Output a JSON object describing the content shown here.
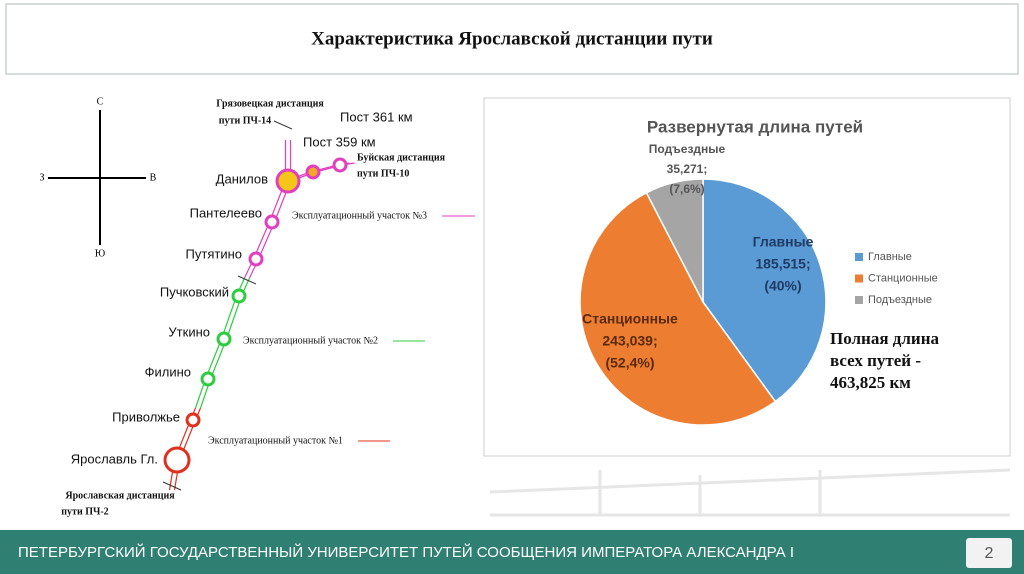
{
  "header": {
    "title": "Характеристика Ярославской дистанции пути"
  },
  "map": {
    "compass": {
      "north": "С",
      "south": "Ю",
      "west": "З",
      "east": "В"
    },
    "stations": [
      "Ярославль Гл.",
      "Приволжье",
      "Филино",
      "Уткино",
      "Пучковский",
      "Путятино",
      "Пантелеево",
      "Данилов",
      "Пост 359 км",
      "Пост 361 км"
    ],
    "sections": [
      "Эксплуатационный участок №1",
      "Эксплуатационный участок №2",
      "Эксплуатационный участок №3"
    ],
    "divisions": [
      {
        "lines": [
          "Ярославская дистанция",
          "пути  ПЧ-2"
        ]
      },
      {
        "lines": [
          "Грязовецкая дистанция",
          "пути  ПЧ-14"
        ]
      },
      {
        "lines": [
          "Буйская дистанция",
          "пути  ПЧ-10"
        ]
      }
    ]
  },
  "chart_data": {
    "type": "pie",
    "title": "Развернутая длина путей",
    "categories": [
      "Главные",
      "Станционные",
      "Подъездные"
    ],
    "values": [
      185.515,
      243.039,
      35.271
    ],
    "value_labels": [
      "185,515;",
      "243,039;",
      "35,271;"
    ],
    "percent_labels": [
      "(40%)",
      "(52,4%)",
      "(7,6%)"
    ],
    "colors": [
      "#5b9bd5",
      "#ed7d31",
      "#a5a5a5"
    ],
    "legend": "right"
  },
  "note": {
    "lines": [
      "Полная длина",
      "всех путей -",
      "463,825 км"
    ]
  },
  "footer": {
    "text": "ПЕТЕРБУРГСКИЙ ГОСУДАРСТВЕННЫЙ УНИВЕРСИТЕТ ПУТЕЙ СООБЩЕНИЯ ИМПЕРАТОРА АЛЕКСАНДРА I",
    "page": "2"
  }
}
